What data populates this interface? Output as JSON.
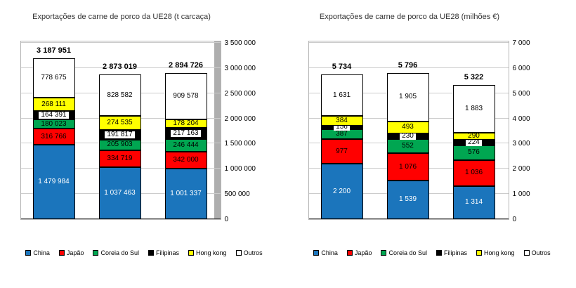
{
  "chart_data": [
    {
      "type": "bar",
      "stacked": true,
      "title": "Exportações de carne de porco da UE28 (t carcaça)",
      "categories": [
        "",
        "",
        ""
      ],
      "series": [
        {
          "name": "China",
          "color": "#1B75BC",
          "label_color": "#FFFFFF",
          "values": [
            1479984,
            1037463,
            1001337
          ]
        },
        {
          "name": "Japão",
          "color": "#FF0000",
          "label_color": "#000000",
          "values": [
            316766,
            334719,
            342000
          ]
        },
        {
          "name": "Coreia do Sul",
          "color": "#00A651",
          "label_color": "#000000",
          "values": [
            180023,
            205903,
            246444
          ]
        },
        {
          "name": "Filipinas",
          "color": "#000000",
          "label_color": "#000000",
          "label_bg": "#FFFFFF",
          "values": [
            164391,
            191817,
            217163
          ]
        },
        {
          "name": "Hong kong",
          "color": "#FFFF00",
          "label_color": "#000000",
          "values": [
            268111,
            274535,
            178204
          ]
        },
        {
          "name": "Outros",
          "color": "#FFFFFF",
          "label_color": "#000000",
          "values": [
            778675,
            828582,
            909578
          ]
        }
      ],
      "totals": [
        3187951,
        2873019,
        2894726
      ],
      "ylim": [
        0,
        3500000
      ],
      "y_tick_step": 500000,
      "grid": true,
      "legend_position": "bottom",
      "right_shadow": true
    },
    {
      "type": "bar",
      "stacked": true,
      "title": "Exportações de carne de porco da UE28 (milhões €)",
      "categories": [
        "",
        "",
        ""
      ],
      "series": [
        {
          "name": "China",
          "color": "#1B75BC",
          "label_color": "#FFFFFF",
          "values": [
            2200,
            1539,
            1314
          ]
        },
        {
          "name": "Japão",
          "color": "#FF0000",
          "label_color": "#000000",
          "values": [
            977,
            1076,
            1036
          ]
        },
        {
          "name": "Coreia do Sul",
          "color": "#00A651",
          "label_color": "#000000",
          "values": [
            387,
            552,
            576
          ]
        },
        {
          "name": "Filipinas",
          "color": "#000000",
          "label_color": "#000000",
          "label_bg": "#FFFFFF",
          "values": [
            156,
            230,
            224
          ]
        },
        {
          "name": "Hong kong",
          "color": "#FFFF00",
          "label_color": "#000000",
          "values": [
            384,
            493,
            290
          ]
        },
        {
          "name": "Outros",
          "color": "#FFFFFF",
          "label_color": "#000000",
          "values": [
            1631,
            1905,
            1883
          ]
        }
      ],
      "totals": [
        5734,
        5796,
        5322
      ],
      "ylim": [
        0,
        7000
      ],
      "y_tick_step": 1000,
      "grid": true,
      "legend_position": "bottom",
      "right_shadow": false
    }
  ]
}
